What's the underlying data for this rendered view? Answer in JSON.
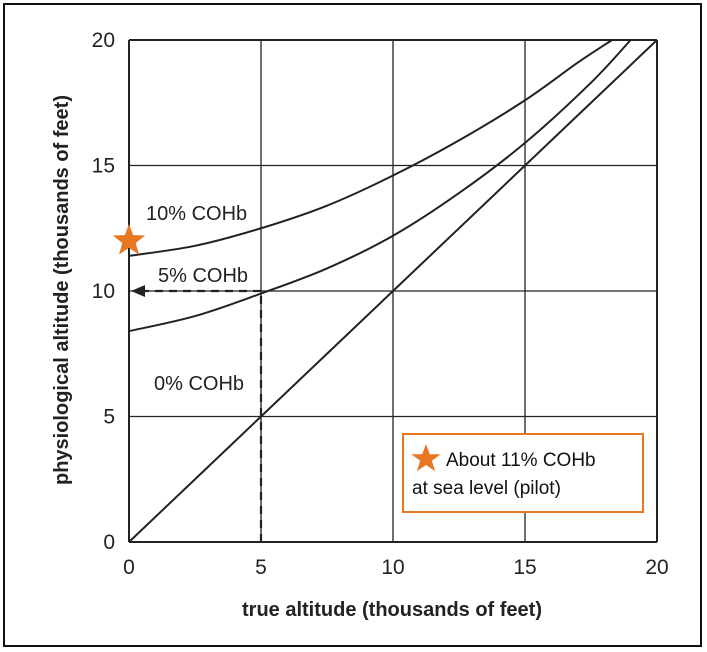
{
  "chart_data": {
    "type": "line",
    "xlabel": "true altitude (thousands of feet)",
    "ylabel": "physiological altitude (thousands of feet)",
    "xlim": [
      0,
      20
    ],
    "ylim": [
      0,
      20
    ],
    "x_ticks": [
      "0",
      "5",
      "10",
      "15",
      "20"
    ],
    "y_ticks": [
      "0",
      "5",
      "10",
      "15",
      "20"
    ],
    "grid": true,
    "series": [
      {
        "name": "0% COHb",
        "x": [
          0,
          5,
          10,
          15,
          20
        ],
        "y": [
          0,
          5,
          10,
          15,
          20
        ]
      },
      {
        "name": "5% COHb",
        "x": [
          0,
          2.5,
          5,
          7.5,
          10,
          12.5,
          15,
          17.5,
          19
        ],
        "y": [
          8.4,
          9.0,
          9.9,
          10.9,
          12.2,
          13.9,
          15.9,
          18.3,
          20
        ]
      },
      {
        "name": "10% COHb",
        "x": [
          0,
          2.5,
          5,
          7.5,
          10,
          12.5,
          15,
          17,
          18.3
        ],
        "y": [
          11.4,
          11.8,
          12.5,
          13.4,
          14.6,
          16.0,
          17.6,
          19.1,
          20
        ]
      }
    ],
    "annotations": {
      "reference_point": {
        "x": 5,
        "y": 10
      },
      "marker": {
        "x": 0,
        "y": 12,
        "color": "#e87722"
      }
    },
    "note": {
      "line1": "About 11% COHb",
      "line2": "at sea level (pilot)",
      "border_color": "#e87722"
    }
  }
}
